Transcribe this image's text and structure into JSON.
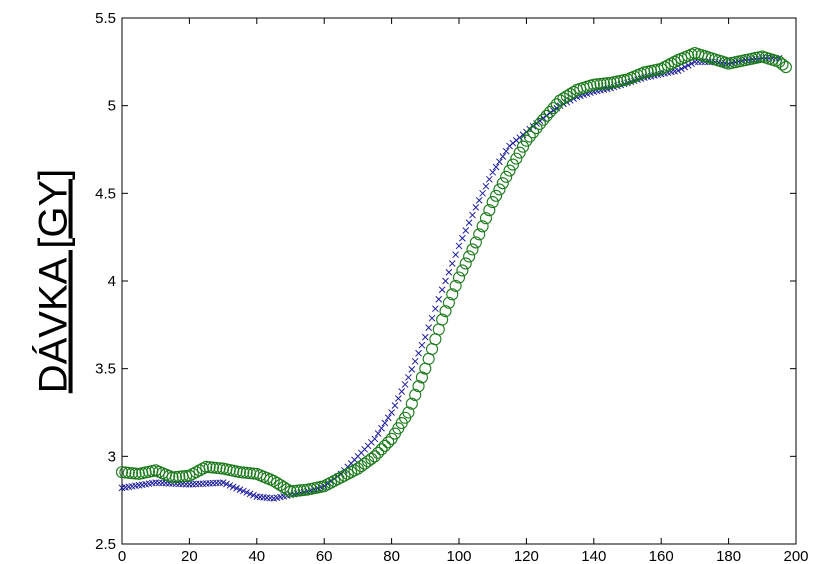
{
  "chart_data": {
    "type": "scatter",
    "title": "",
    "xlabel": "",
    "ylabel": "DÁVKA [GY]",
    "xlim": [
      0,
      200
    ],
    "ylim": [
      2.5,
      5.5
    ],
    "xticks": [
      "0",
      "20",
      "40",
      "60",
      "80",
      "100",
      "120",
      "140",
      "160",
      "180",
      "200"
    ],
    "yticks": [
      "2.5",
      "3",
      "3.5",
      "4",
      "4.5",
      "5",
      "5.5"
    ],
    "grid": false,
    "legend": "none",
    "series": [
      {
        "marker": "x",
        "color": "#1f1f9e",
        "step": 1,
        "points": [
          [
            0,
            2.82
          ],
          [
            10,
            2.85
          ],
          [
            20,
            2.84
          ],
          [
            30,
            2.85
          ],
          [
            40,
            2.77
          ],
          [
            45,
            2.76
          ],
          [
            50,
            2.78
          ],
          [
            55,
            2.8
          ],
          [
            60,
            2.83
          ],
          [
            65,
            2.9
          ],
          [
            70,
            3.0
          ],
          [
            75,
            3.1
          ],
          [
            80,
            3.25
          ],
          [
            85,
            3.45
          ],
          [
            90,
            3.68
          ],
          [
            95,
            3.95
          ],
          [
            100,
            4.2
          ],
          [
            105,
            4.42
          ],
          [
            110,
            4.62
          ],
          [
            115,
            4.77
          ],
          [
            120,
            4.85
          ],
          [
            125,
            4.93
          ],
          [
            130,
            5.0
          ],
          [
            135,
            5.05
          ],
          [
            140,
            5.08
          ],
          [
            145,
            5.1
          ],
          [
            150,
            5.13
          ],
          [
            155,
            5.16
          ],
          [
            160,
            5.18
          ],
          [
            165,
            5.2
          ],
          [
            170,
            5.25
          ],
          [
            175,
            5.25
          ],
          [
            180,
            5.24
          ],
          [
            185,
            5.26
          ],
          [
            190,
            5.27
          ],
          [
            195,
            5.27
          ]
        ]
      },
      {
        "marker": "circle",
        "color": "#1c7a1c",
        "step": 1,
        "points": [
          [
            0,
            2.91
          ],
          [
            5,
            2.9
          ],
          [
            10,
            2.92
          ],
          [
            15,
            2.88
          ],
          [
            20,
            2.89
          ],
          [
            25,
            2.94
          ],
          [
            30,
            2.93
          ],
          [
            35,
            2.91
          ],
          [
            40,
            2.9
          ],
          [
            45,
            2.86
          ],
          [
            50,
            2.8
          ],
          [
            55,
            2.81
          ],
          [
            60,
            2.83
          ],
          [
            65,
            2.88
          ],
          [
            70,
            2.93
          ],
          [
            75,
            3.0
          ],
          [
            80,
            3.1
          ],
          [
            85,
            3.25
          ],
          [
            90,
            3.5
          ],
          [
            95,
            3.78
          ],
          [
            100,
            4.02
          ],
          [
            105,
            4.22
          ],
          [
            110,
            4.45
          ],
          [
            115,
            4.63
          ],
          [
            120,
            4.8
          ],
          [
            125,
            4.92
          ],
          [
            130,
            5.03
          ],
          [
            135,
            5.09
          ],
          [
            140,
            5.12
          ],
          [
            145,
            5.13
          ],
          [
            150,
            5.15
          ],
          [
            155,
            5.19
          ],
          [
            160,
            5.21
          ],
          [
            165,
            5.26
          ],
          [
            170,
            5.3
          ],
          [
            175,
            5.27
          ],
          [
            180,
            5.24
          ],
          [
            185,
            5.26
          ],
          [
            190,
            5.28
          ],
          [
            195,
            5.25
          ],
          [
            197,
            5.22
          ]
        ]
      }
    ]
  }
}
